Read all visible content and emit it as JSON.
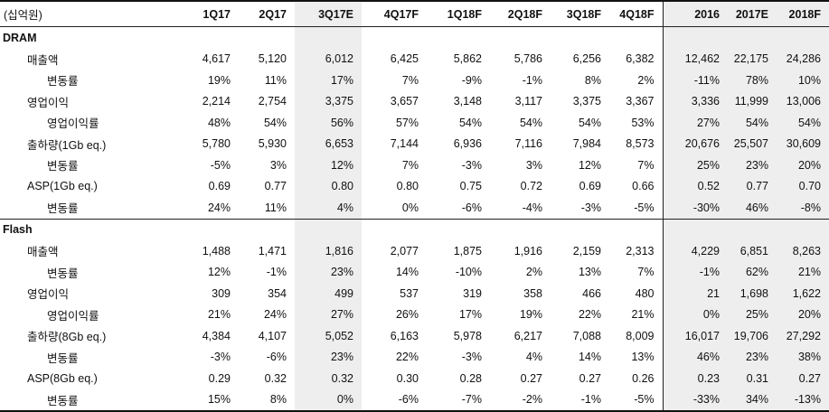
{
  "header": {
    "unit_label": "(십억원)",
    "columns": [
      "1Q17",
      "2Q17",
      "3Q17E",
      "4Q17F",
      "1Q18F",
      "2Q18F",
      "3Q18F",
      "4Q18F",
      "2016",
      "2017E",
      "2018F"
    ]
  },
  "sections": [
    {
      "name": "DRAM",
      "rows": [
        {
          "label": "매출액",
          "level": 1,
          "values": [
            "4,617",
            "5,120",
            "6,012",
            "6,425",
            "5,862",
            "5,786",
            "6,256",
            "6,382",
            "12,462",
            "22,175",
            "24,286"
          ]
        },
        {
          "label": "변동률",
          "level": 2,
          "values": [
            "19%",
            "11%",
            "17%",
            "7%",
            "-9%",
            "-1%",
            "8%",
            "2%",
            "-11%",
            "78%",
            "10%"
          ]
        },
        {
          "label": "영업이익",
          "level": 1,
          "values": [
            "2,214",
            "2,754",
            "3,375",
            "3,657",
            "3,148",
            "3,117",
            "3,375",
            "3,367",
            "3,336",
            "11,999",
            "13,006"
          ]
        },
        {
          "label": "영업이익률",
          "level": 2,
          "values": [
            "48%",
            "54%",
            "56%",
            "57%",
            "54%",
            "54%",
            "54%",
            "53%",
            "27%",
            "54%",
            "54%"
          ]
        },
        {
          "label": "출하량(1Gb eq.)",
          "level": 1,
          "values": [
            "5,780",
            "5,930",
            "6,653",
            "7,144",
            "6,936",
            "7,116",
            "7,984",
            "8,573",
            "20,676",
            "25,507",
            "30,609"
          ]
        },
        {
          "label": "변동률",
          "level": 2,
          "values": [
            "-5%",
            "3%",
            "12%",
            "7%",
            "-3%",
            "3%",
            "12%",
            "7%",
            "25%",
            "23%",
            "20%"
          ]
        },
        {
          "label": "ASP(1Gb eq.)",
          "level": 1,
          "values": [
            "0.69",
            "0.77",
            "0.80",
            "0.80",
            "0.75",
            "0.72",
            "0.69",
            "0.66",
            "0.52",
            "0.77",
            "0.70"
          ]
        },
        {
          "label": "변동률",
          "level": 2,
          "values": [
            "24%",
            "11%",
            "4%",
            "0%",
            "-6%",
            "-4%",
            "-3%",
            "-5%",
            "-30%",
            "46%",
            "-8%"
          ]
        }
      ]
    },
    {
      "name": "Flash",
      "rows": [
        {
          "label": "매출액",
          "level": 1,
          "values": [
            "1,488",
            "1,471",
            "1,816",
            "2,077",
            "1,875",
            "1,916",
            "2,159",
            "2,313",
            "4,229",
            "6,851",
            "8,263"
          ]
        },
        {
          "label": "변동률",
          "level": 2,
          "values": [
            "12%",
            "-1%",
            "23%",
            "14%",
            "-10%",
            "2%",
            "13%",
            "7%",
            "-1%",
            "62%",
            "21%"
          ]
        },
        {
          "label": "영업이익",
          "level": 1,
          "values": [
            "309",
            "354",
            "499",
            "537",
            "319",
            "358",
            "466",
            "480",
            "21",
            "1,698",
            "1,622"
          ]
        },
        {
          "label": "영업이익률",
          "level": 2,
          "values": [
            "21%",
            "24%",
            "27%",
            "26%",
            "17%",
            "19%",
            "22%",
            "21%",
            "0%",
            "25%",
            "20%"
          ]
        },
        {
          "label": "출하량(8Gb eq.)",
          "level": 1,
          "values": [
            "4,384",
            "4,107",
            "5,052",
            "6,163",
            "5,978",
            "6,217",
            "7,088",
            "8,009",
            "16,017",
            "19,706",
            "27,292"
          ]
        },
        {
          "label": "변동률",
          "level": 2,
          "values": [
            "-3%",
            "-6%",
            "23%",
            "22%",
            "-3%",
            "4%",
            "14%",
            "13%",
            "46%",
            "23%",
            "38%"
          ]
        },
        {
          "label": "ASP(8Gb eq.)",
          "level": 1,
          "values": [
            "0.29",
            "0.32",
            "0.32",
            "0.30",
            "0.28",
            "0.27",
            "0.27",
            "0.26",
            "0.23",
            "0.31",
            "0.27"
          ]
        },
        {
          "label": "변동률",
          "level": 2,
          "values": [
            "15%",
            "8%",
            "0%",
            "-6%",
            "-7%",
            "-2%",
            "-1%",
            "-5%",
            "-33%",
            "34%",
            "-13%"
          ]
        }
      ]
    }
  ],
  "styles": {
    "shade_color": "#eeeeee",
    "line_color": "#222222"
  }
}
